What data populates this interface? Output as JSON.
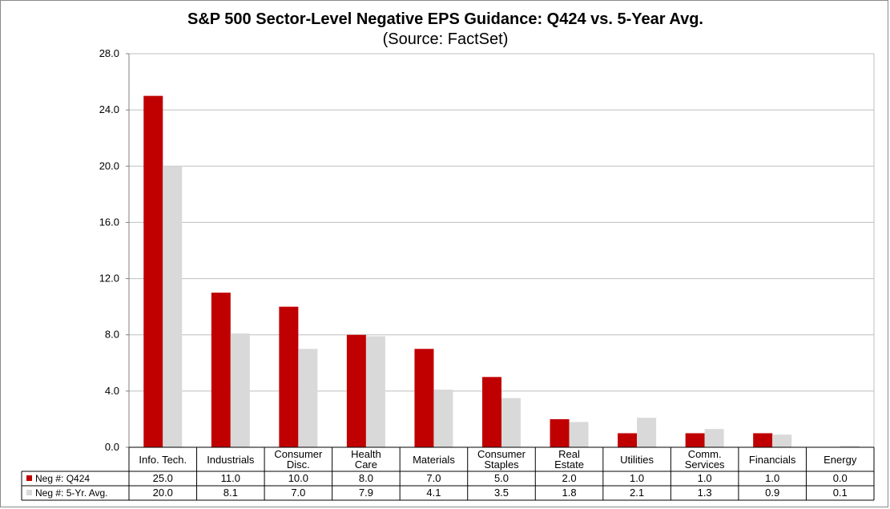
{
  "colors": {
    "q424": "#c00000",
    "avg5": "#d9d9d9",
    "grid": "#bfbfbf",
    "axis": "#808080"
  },
  "chart_data": {
    "type": "bar",
    "title": "S&P 500 Sector-Level Negative EPS Guidance: Q424 vs. 5-Year Avg.",
    "subtitle": "(Source: FactSet)",
    "xlabel": "",
    "ylabel": "",
    "ylim": [
      0,
      28
    ],
    "yticks": [
      "0.0",
      "4.0",
      "8.0",
      "12.0",
      "16.0",
      "20.0",
      "24.0",
      "28.0"
    ],
    "grid": true,
    "categories": [
      [
        "Info. Tech."
      ],
      [
        "Industrials"
      ],
      [
        "Consumer",
        "Disc."
      ],
      [
        "Health",
        "Care"
      ],
      [
        "Materials"
      ],
      [
        "Consumer",
        "Staples"
      ],
      [
        "Real",
        "Estate"
      ],
      [
        "Utilities"
      ],
      [
        "Comm.",
        "Services"
      ],
      [
        "Financials"
      ],
      [
        "Energy"
      ]
    ],
    "series": [
      {
        "name": "Neg #: Q424",
        "values": [
          25.0,
          11.0,
          10.0,
          8.0,
          7.0,
          5.0,
          2.0,
          1.0,
          1.0,
          1.0,
          0.0
        ],
        "labels": [
          "25.0",
          "11.0",
          "10.0",
          "8.0",
          "7.0",
          "5.0",
          "2.0",
          "1.0",
          "1.0",
          "1.0",
          "0.0"
        ]
      },
      {
        "name": "Neg #: 5-Yr. Avg.",
        "values": [
          20.0,
          8.1,
          7.0,
          7.9,
          4.1,
          3.5,
          1.8,
          2.1,
          1.3,
          0.9,
          0.1
        ],
        "labels": [
          "20.0",
          "8.1",
          "7.0",
          "7.9",
          "4.1",
          "3.5",
          "1.8",
          "2.1",
          "1.3",
          "0.9",
          "0.1"
        ]
      }
    ]
  }
}
